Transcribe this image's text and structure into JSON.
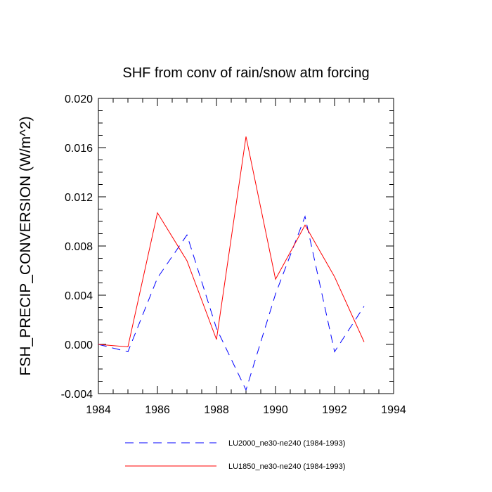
{
  "chart_data": {
    "type": "line",
    "title": "SHF from conv of rain/snow atm forcing",
    "xlabel": "",
    "ylabel": "FSH_PRECIP_CONVERSION  (W/m^2)",
    "xlim": [
      1984,
      1994
    ],
    "ylim": [
      -0.004,
      0.02
    ],
    "x_ticks": [
      1984,
      1986,
      1988,
      1990,
      1992,
      1994
    ],
    "x_tick_labels": [
      "1984",
      "1986",
      "1988",
      "1990",
      "1992",
      "1994"
    ],
    "y_ticks": [
      -0.004,
      0.0,
      0.004,
      0.008,
      0.012,
      0.016,
      0.02
    ],
    "y_tick_labels": [
      "-0.004",
      "0.000",
      "0.004",
      "0.008",
      "0.012",
      "0.016",
      "0.020"
    ],
    "grid": false,
    "legend_position": "bottom",
    "x": [
      1984,
      1985,
      1986,
      1987,
      1988,
      1989,
      1990,
      1991,
      1992,
      1993
    ],
    "series": [
      {
        "name": "LU2000_ne30-ne240 (1984-1993)",
        "color": "#0000ff",
        "style": "dashed",
        "values": [
          0.0,
          -0.0006,
          0.0054,
          0.0089,
          0.0013,
          -0.0037,
          0.0041,
          0.0104,
          -0.0006,
          0.0031
        ]
      },
      {
        "name": "LU1850_ne30-ne240 (1984-1993)",
        "color": "#ff0000",
        "style": "solid",
        "values": [
          0.0,
          -0.0002,
          0.0107,
          0.0068,
          0.0004,
          0.0169,
          0.0053,
          0.0097,
          0.0055,
          0.0002
        ]
      }
    ]
  }
}
